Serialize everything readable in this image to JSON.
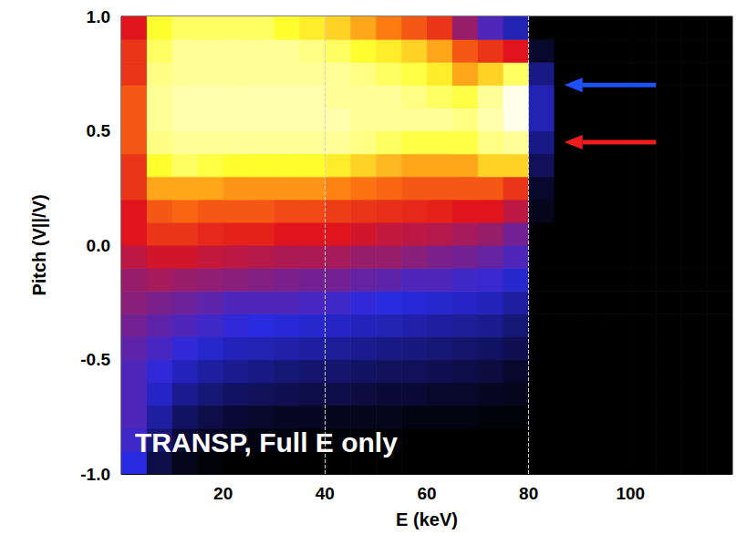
{
  "chart_data": {
    "type": "heatmap",
    "xlabel": "E (keV)",
    "ylabel": "Pitch (V||/V)",
    "xlim": [
      0,
      120
    ],
    "ylim": [
      -1,
      1
    ],
    "xticks": [
      20,
      40,
      60,
      80,
      100
    ],
    "yticks": [
      {
        "value": -1,
        "label": "-1.0"
      },
      -0.5,
      {
        "value": 0,
        "label": "0.0"
      },
      0.5,
      {
        "value": 1,
        "label": "1.0"
      }
    ],
    "grid": false,
    "x_bins": [
      0,
      5,
      10,
      15,
      20,
      25,
      30,
      35,
      40,
      45,
      50,
      55,
      60,
      65,
      70,
      75,
      80,
      85,
      90,
      95,
      100,
      105,
      110,
      115,
      120
    ],
    "y_bins": [
      -1,
      -0.9,
      -0.8,
      -0.7,
      -0.6,
      -0.5,
      -0.4,
      -0.3,
      -0.2,
      -0.1,
      0,
      0.1,
      0.2,
      0.3,
      0.4,
      0.5,
      0.6,
      0.7,
      0.8,
      0.9,
      1
    ],
    "color_range": [
      0,
      10
    ],
    "values": [
      [
        2.5,
        0.8,
        0.3,
        0.1,
        0,
        0,
        0,
        0,
        0,
        0,
        0,
        0,
        0,
        0,
        0,
        0,
        0,
        0,
        0,
        0,
        0,
        0,
        0,
        0
      ],
      [
        2.8,
        1.3,
        0.6,
        0.4,
        0.3,
        0.2,
        0.2,
        0.1,
        0.1,
        0.1,
        0.1,
        0,
        0,
        0,
        0,
        0,
        0,
        0,
        0,
        0,
        0,
        0,
        0,
        0
      ],
      [
        3,
        1.8,
        1.1,
        0.8,
        0.6,
        0.5,
        0.4,
        0.4,
        0.3,
        0.3,
        0.3,
        0.2,
        0.2,
        0.2,
        0.1,
        0.1,
        0,
        0,
        0,
        0,
        0,
        0,
        0,
        0
      ],
      [
        3,
        2.2,
        1.6,
        1.3,
        1.1,
        1,
        0.9,
        0.8,
        0.8,
        0.7,
        0.6,
        0.6,
        0.5,
        0.5,
        0.4,
        0.3,
        0,
        0,
        0,
        0,
        0,
        0,
        0,
        0
      ],
      [
        3,
        2.6,
        2.1,
        1.8,
        1.6,
        1.5,
        1.3,
        1.2,
        1.2,
        1.1,
        1,
        1,
        0.9,
        0.8,
        0.7,
        0.5,
        0,
        0,
        0,
        0,
        0,
        0,
        0,
        0
      ],
      [
        3.2,
        2.9,
        2.6,
        2.3,
        2.1,
        2,
        1.9,
        1.8,
        1.7,
        1.6,
        1.5,
        1.4,
        1.3,
        1.2,
        1.1,
        0.9,
        0,
        0,
        0,
        0,
        0,
        0,
        0,
        0
      ],
      [
        3.5,
        3.2,
        3,
        2.8,
        2.6,
        2.5,
        2.4,
        2.3,
        2.2,
        2.1,
        2,
        1.9,
        1.8,
        1.7,
        1.6,
        1.3,
        0,
        0,
        0,
        0,
        0,
        0,
        0,
        0
      ],
      [
        3.8,
        3.6,
        3.4,
        3.2,
        3,
        3,
        3,
        2.9,
        2.8,
        2.6,
        2.5,
        2.4,
        2.3,
        2.2,
        2.1,
        1.8,
        0,
        0,
        0,
        0,
        0,
        0,
        0,
        0
      ],
      [
        4,
        4.2,
        4,
        3.9,
        3.8,
        3.7,
        3.6,
        3.5,
        3.5,
        3.3,
        3.2,
        3,
        3,
        2.8,
        2.7,
        2.3,
        0,
        0,
        0,
        0,
        0,
        0,
        0,
        0
      ],
      [
        4.5,
        4.8,
        4.8,
        4.6,
        4.5,
        4.4,
        4.3,
        4.3,
        4.2,
        4,
        4,
        3.8,
        3.6,
        3.5,
        3.3,
        3,
        0,
        0,
        0,
        0,
        0,
        0,
        0,
        0
      ],
      [
        5,
        5.5,
        5.5,
        5.3,
        5.2,
        5.2,
        5,
        5,
        5,
        4.8,
        4.6,
        4.5,
        4.4,
        4.2,
        4,
        3.5,
        0,
        0,
        0,
        0,
        0,
        0,
        0,
        0
      ],
      [
        5,
        6,
        6.2,
        6,
        6,
        6,
        5.8,
        5.8,
        5.6,
        5.5,
        5.4,
        5.3,
        5.2,
        5,
        5,
        4.5,
        0.3,
        0,
        0,
        0,
        0,
        0,
        0,
        0
      ],
      [
        5.5,
        7,
        7,
        7,
        6.8,
        6.8,
        6.8,
        6.8,
        6.6,
        6.4,
        6.2,
        6,
        6,
        6,
        6,
        5.5,
        0.5,
        0,
        0,
        0,
        0,
        0,
        0,
        0
      ],
      [
        5.5,
        8,
        8.5,
        8.2,
        8,
        8,
        8,
        8,
        7.8,
        7.5,
        7.2,
        7,
        7,
        7,
        7.5,
        7.5,
        1,
        0,
        0,
        0,
        0,
        0,
        0,
        0
      ],
      [
        6,
        8.8,
        9,
        9,
        9,
        9,
        9,
        9,
        9,
        8.8,
        8.5,
        8.2,
        8.2,
        8.2,
        8.8,
        9,
        1.5,
        0,
        0,
        0,
        0,
        0,
        0,
        0
      ],
      [
        6,
        9,
        9.2,
        9.2,
        9.2,
        9.2,
        9.2,
        9.2,
        9.2,
        9,
        9,
        9,
        9,
        8.8,
        9.2,
        9.8,
        2,
        0,
        0,
        0,
        0,
        0,
        0,
        0
      ],
      [
        6,
        9,
        9.2,
        9.2,
        9.2,
        9.2,
        9.2,
        9.2,
        9,
        9,
        9,
        8.8,
        8.5,
        8.2,
        9,
        9.8,
        2,
        0,
        0,
        0,
        0,
        0,
        0,
        0
      ],
      [
        5.5,
        8.8,
        9,
        9,
        9,
        9,
        9,
        9,
        9,
        8.8,
        8.5,
        8.2,
        7.8,
        7,
        7.5,
        8.5,
        1.5,
        0,
        0,
        0,
        0,
        0,
        0,
        0
      ],
      [
        5.5,
        8.5,
        9,
        9,
        9,
        9,
        9,
        8.8,
        8.5,
        8,
        7.8,
        7.5,
        7,
        6,
        5.5,
        5,
        0.5,
        0,
        0,
        0,
        0,
        0,
        0,
        0
      ],
      [
        5,
        8,
        8.5,
        8.5,
        8.5,
        8.5,
        8,
        7.8,
        7.5,
        7,
        6.5,
        6,
        5.5,
        4,
        3,
        2,
        0,
        0,
        0,
        0,
        0,
        0,
        0,
        0
      ]
    ],
    "vlines": [
      40,
      80
    ],
    "arrows": [
      {
        "x_from": 105,
        "x_to": 87,
        "y": 0.7,
        "color": "#1f4fff"
      },
      {
        "x_from": 105,
        "x_to": 87,
        "y": 0.45,
        "color": "#ee1c1c"
      }
    ],
    "annotations": [
      "TRANSP, Full E only"
    ]
  }
}
